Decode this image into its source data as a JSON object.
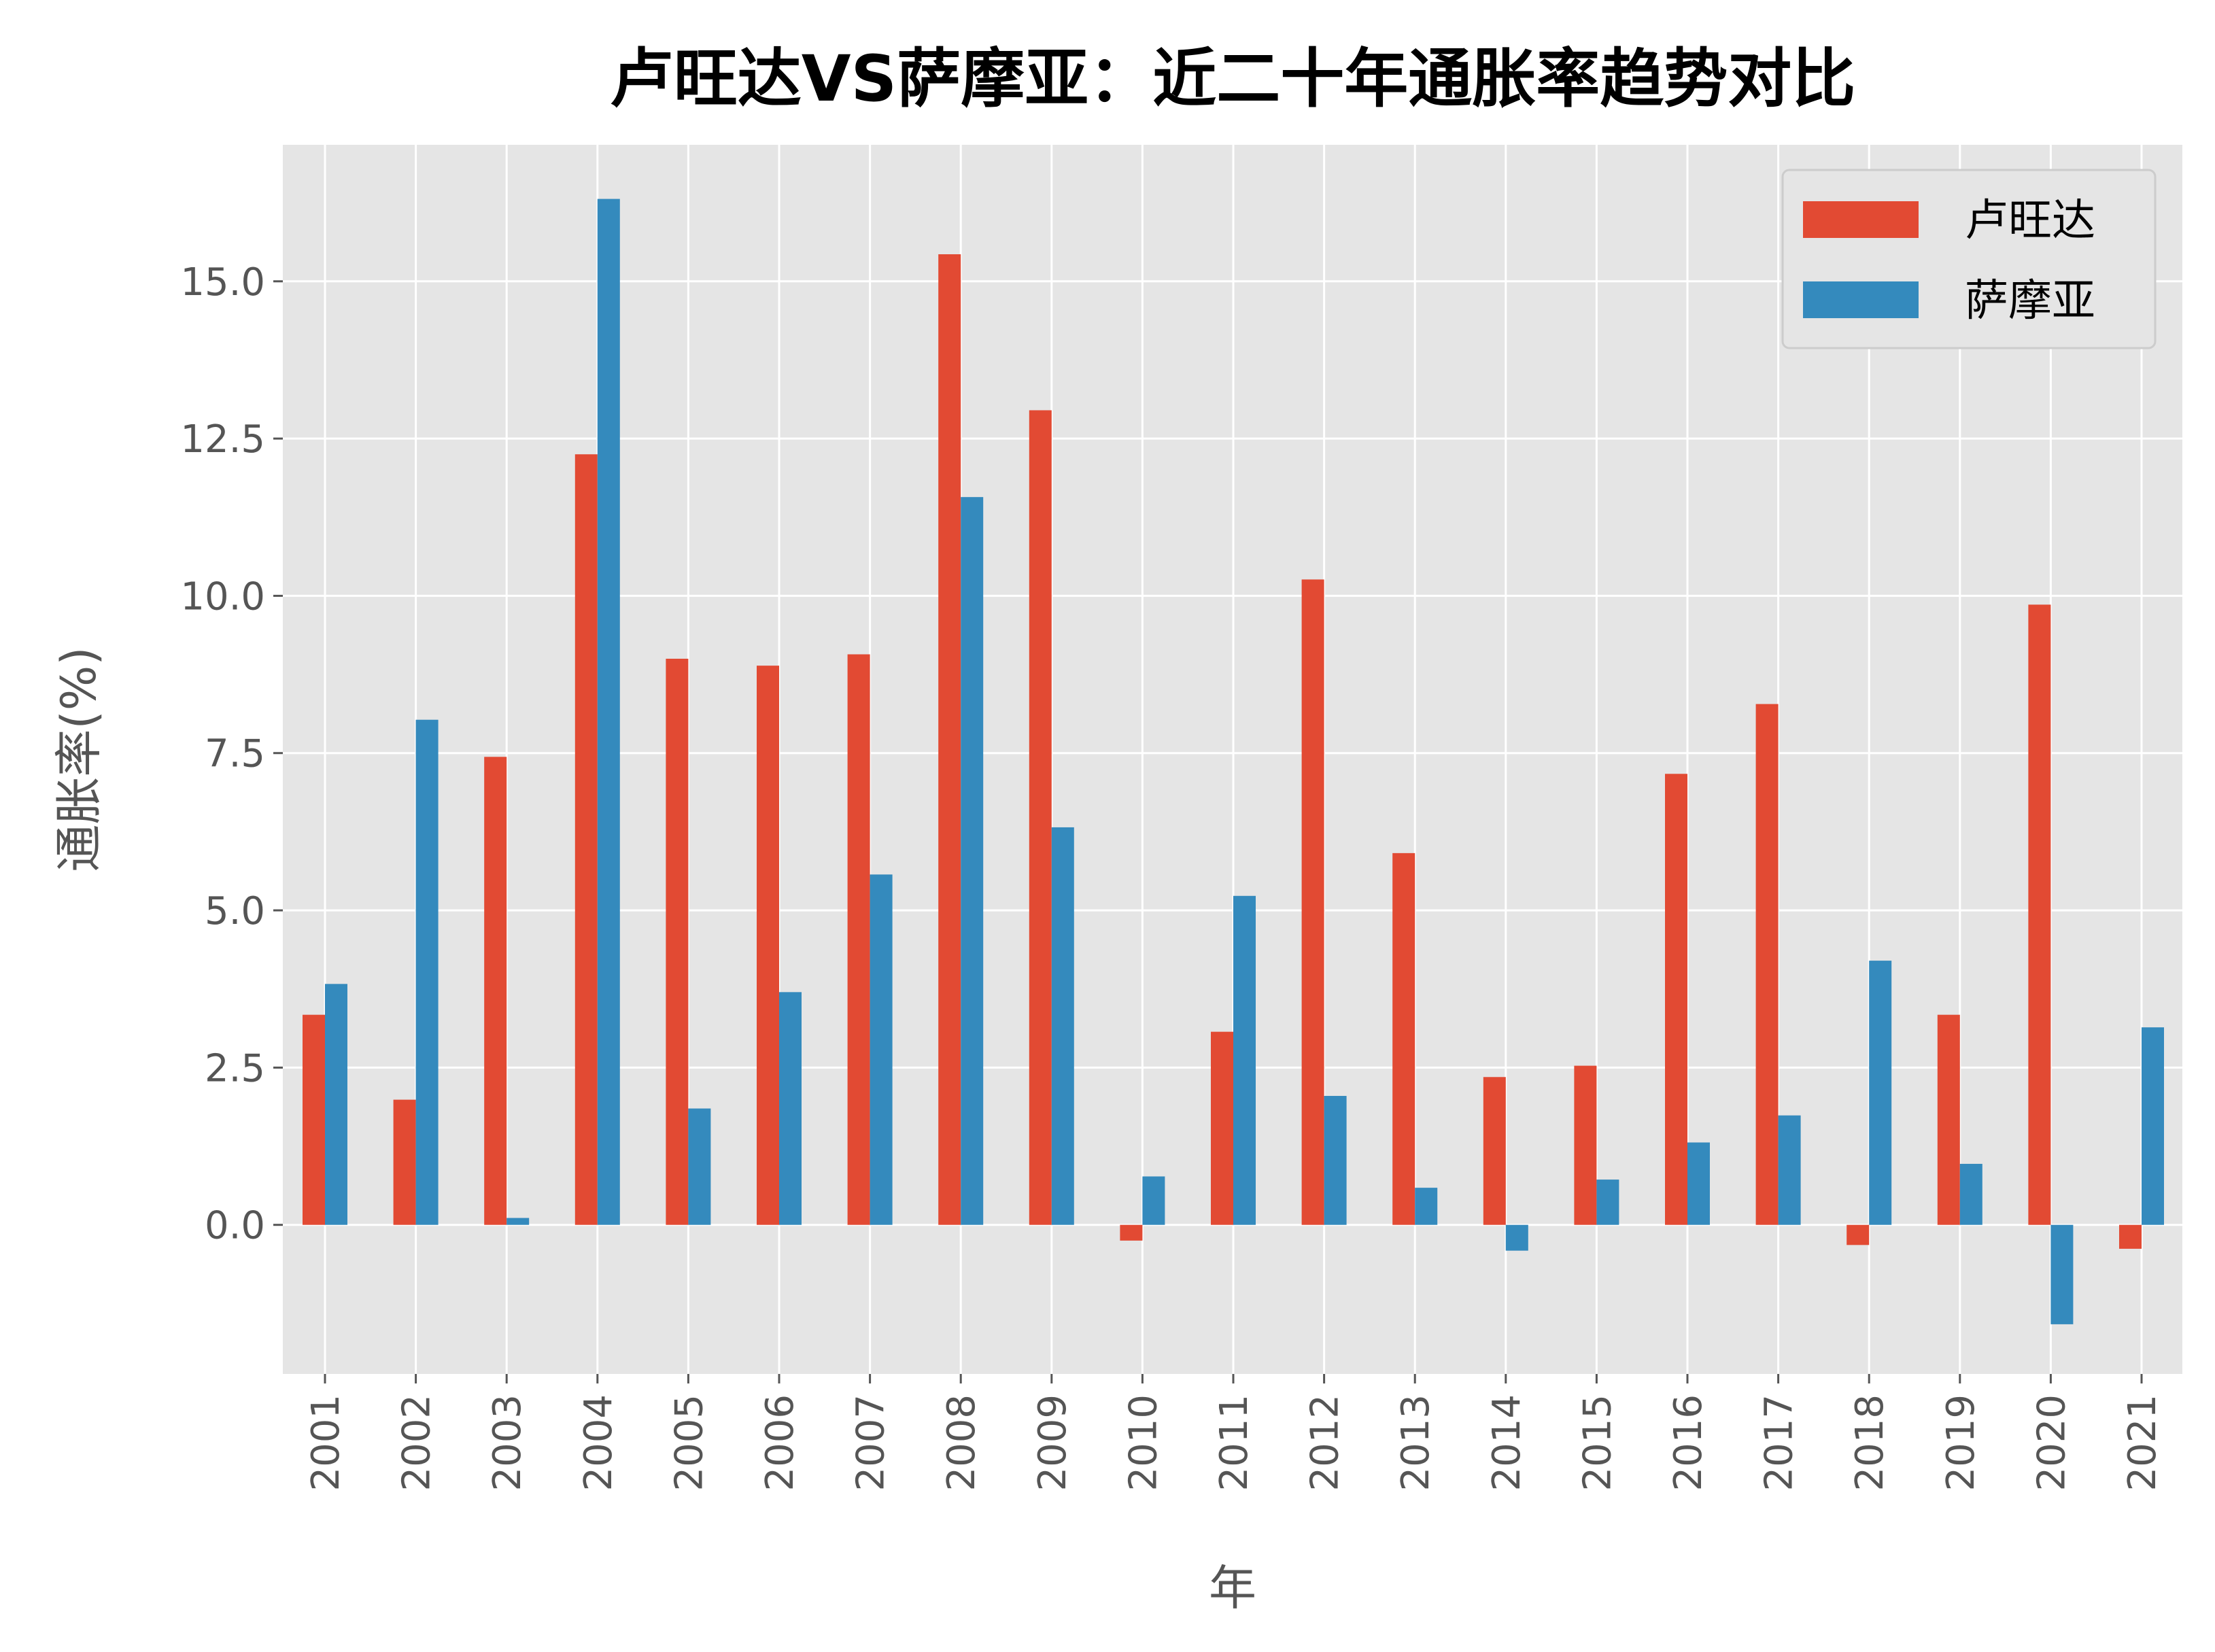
{
  "chart_data": {
    "type": "bar",
    "title": "卢旺达VS萨摩亚：近二十年通胀率趋势对比",
    "xlabel": "年",
    "ylabel": "通胀率(%)",
    "categories": [
      "2001",
      "2002",
      "2003",
      "2004",
      "2005",
      "2006",
      "2007",
      "2008",
      "2009",
      "2010",
      "2011",
      "2012",
      "2013",
      "2014",
      "2015",
      "2016",
      "2017",
      "2018",
      "2019",
      "2020",
      "2021"
    ],
    "series": [
      {
        "name": "卢旺达",
        "color": "#E24A33",
        "values": [
          3.34,
          1.99,
          7.44,
          12.25,
          9.0,
          8.89,
          9.07,
          15.43,
          12.95,
          -0.25,
          3.07,
          10.26,
          5.91,
          2.35,
          2.53,
          7.17,
          8.28,
          -0.32,
          3.34,
          9.86,
          -0.38
        ]
      },
      {
        "name": "萨摩亚",
        "color": "#348ABD",
        "values": [
          3.83,
          8.03,
          0.11,
          16.31,
          1.85,
          3.7,
          5.57,
          11.57,
          6.32,
          0.77,
          5.23,
          2.05,
          0.59,
          -0.41,
          0.72,
          1.31,
          1.74,
          4.2,
          0.97,
          -1.58,
          3.14
        ]
      }
    ],
    "yticks": [
      "0.0",
      "2.5",
      "5.0",
      "7.5",
      "10.0",
      "12.5",
      "15.0"
    ],
    "ylim": [
      -2.37,
      17.17
    ],
    "grid": true,
    "legend": "top-right",
    "background": "#E5E5E5"
  }
}
